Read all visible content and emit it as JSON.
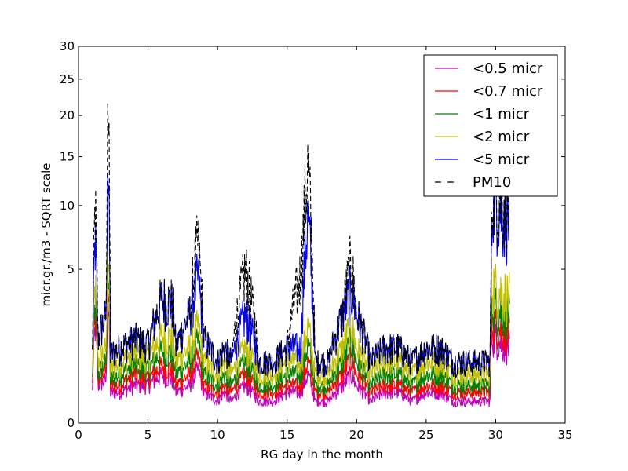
{
  "chart_data": {
    "type": "line",
    "title": "",
    "xlabel": "RG day in the month",
    "ylabel": "micr.gr./m3 - SQRT scale",
    "y_scale": "sqrt",
    "xlim": [
      0,
      35
    ],
    "ylim": [
      0,
      30
    ],
    "x_ticks": [
      0,
      5,
      10,
      15,
      20,
      25,
      30,
      35
    ],
    "y_ticks": [
      0,
      5,
      10,
      15,
      20,
      25,
      30
    ],
    "grid": false,
    "legend_position": "top-right",
    "series": [
      {
        "name": "<0.5 micr",
        "color": "#bf00bf",
        "dash": "solid",
        "points": [
          [
            1.0,
            0.2
          ],
          [
            1.2,
            2.0
          ],
          [
            1.4,
            0.3
          ],
          [
            2.0,
            0.4
          ],
          [
            2.1,
            3.5
          ],
          [
            2.3,
            0.2
          ],
          [
            3,
            0.2
          ],
          [
            4,
            0.3
          ],
          [
            5,
            0.3
          ],
          [
            6,
            0.5
          ],
          [
            6.8,
            0.4
          ],
          [
            7,
            0.2
          ],
          [
            8,
            0.3
          ],
          [
            8.6,
            0.6
          ],
          [
            9,
            0.2
          ],
          [
            10,
            0.1
          ],
          [
            10.5,
            0.2
          ],
          [
            11,
            0.1
          ],
          [
            12,
            0.3
          ],
          [
            13,
            0.1
          ],
          [
            14,
            0.1
          ],
          [
            15,
            0.2
          ],
          [
            16,
            0.2
          ],
          [
            16.5,
            0.5
          ],
          [
            17,
            0.1
          ],
          [
            18,
            0.1
          ],
          [
            19,
            0.3
          ],
          [
            19.6,
            0.5
          ],
          [
            20,
            0.3
          ],
          [
            21,
            0.1
          ],
          [
            22,
            0.2
          ],
          [
            23,
            0.2
          ],
          [
            24,
            0.1
          ],
          [
            25,
            0.2
          ],
          [
            26,
            0.2
          ],
          [
            27,
            0.1
          ],
          [
            28,
            0.1
          ],
          [
            29,
            0.1
          ],
          [
            29.6,
            0.1
          ],
          [
            29.7,
            1.6
          ],
          [
            30,
            1.5
          ],
          [
            30.5,
            1.3
          ],
          [
            31,
            1.2
          ]
        ]
      },
      {
        "name": "<0.7 micr",
        "color": "#ff0000",
        "dash": "solid",
        "points": [
          [
            1.0,
            0.3
          ],
          [
            1.2,
            2.5
          ],
          [
            1.4,
            0.4
          ],
          [
            2.0,
            0.6
          ],
          [
            2.1,
            4.5
          ],
          [
            2.3,
            0.3
          ],
          [
            3,
            0.3
          ],
          [
            4,
            0.5
          ],
          [
            5,
            0.4
          ],
          [
            6,
            0.7
          ],
          [
            6.8,
            0.6
          ],
          [
            7,
            0.3
          ],
          [
            8,
            0.5
          ],
          [
            8.6,
            0.9
          ],
          [
            9,
            0.3
          ],
          [
            10,
            0.2
          ],
          [
            10.5,
            0.3
          ],
          [
            11,
            0.2
          ],
          [
            12,
            0.5
          ],
          [
            13,
            0.2
          ],
          [
            14,
            0.2
          ],
          [
            15,
            0.3
          ],
          [
            16,
            0.3
          ],
          [
            16.5,
            0.8
          ],
          [
            17,
            0.2
          ],
          [
            18,
            0.2
          ],
          [
            19,
            0.5
          ],
          [
            19.6,
            0.9
          ],
          [
            20,
            0.5
          ],
          [
            21,
            0.2
          ],
          [
            22,
            0.3
          ],
          [
            23,
            0.3
          ],
          [
            24,
            0.2
          ],
          [
            25,
            0.3
          ],
          [
            26,
            0.3
          ],
          [
            27,
            0.2
          ],
          [
            28,
            0.2
          ],
          [
            29,
            0.2
          ],
          [
            29.6,
            0.2
          ],
          [
            29.7,
            2.2
          ],
          [
            30,
            2.0
          ],
          [
            30.5,
            1.8
          ],
          [
            31,
            1.7
          ]
        ]
      },
      {
        "name": "<1 micr",
        "color": "#008000",
        "dash": "solid",
        "points": [
          [
            1.0,
            0.4
          ],
          [
            1.2,
            3.0
          ],
          [
            1.4,
            0.5
          ],
          [
            2.0,
            0.8
          ],
          [
            2.1,
            5.5
          ],
          [
            2.3,
            0.4
          ],
          [
            3,
            0.5
          ],
          [
            4,
            0.7
          ],
          [
            5,
            0.6
          ],
          [
            6,
            1.1
          ],
          [
            6.8,
            1.0
          ],
          [
            7,
            0.5
          ],
          [
            8,
            0.8
          ],
          [
            8.6,
            1.4
          ],
          [
            9,
            0.5
          ],
          [
            10,
            0.3
          ],
          [
            10.5,
            0.5
          ],
          [
            11,
            0.3
          ],
          [
            12,
            0.8
          ],
          [
            13,
            0.3
          ],
          [
            14,
            0.3
          ],
          [
            15,
            0.5
          ],
          [
            16,
            0.5
          ],
          [
            16.5,
            1.3
          ],
          [
            17,
            0.3
          ],
          [
            18,
            0.3
          ],
          [
            19,
            0.8
          ],
          [
            19.6,
            1.4
          ],
          [
            20,
            0.8
          ],
          [
            21,
            0.3
          ],
          [
            22,
            0.5
          ],
          [
            23,
            0.5
          ],
          [
            24,
            0.3
          ],
          [
            25,
            0.5
          ],
          [
            26,
            0.5
          ],
          [
            27,
            0.3
          ],
          [
            28,
            0.3
          ],
          [
            29,
            0.3
          ],
          [
            29.6,
            0.3
          ],
          [
            29.7,
            3.1
          ],
          [
            30,
            2.8
          ],
          [
            30.5,
            2.6
          ],
          [
            31,
            2.4
          ]
        ]
      },
      {
        "name": "<2 micr",
        "color": "#bfbf00",
        "dash": "solid",
        "points": [
          [
            1.0,
            0.6
          ],
          [
            1.2,
            4.0
          ],
          [
            1.4,
            0.8
          ],
          [
            2.0,
            1.2
          ],
          [
            2.1,
            7.0
          ],
          [
            2.3,
            0.6
          ],
          [
            3,
            0.8
          ],
          [
            4,
            1.0
          ],
          [
            5,
            0.9
          ],
          [
            6,
            1.6
          ],
          [
            6.8,
            1.5
          ],
          [
            7,
            0.8
          ],
          [
            8,
            1.2
          ],
          [
            8.6,
            2.0
          ],
          [
            9,
            0.8
          ],
          [
            10,
            0.5
          ],
          [
            10.5,
            0.8
          ],
          [
            11,
            0.5
          ],
          [
            12,
            1.2
          ],
          [
            13,
            0.5
          ],
          [
            14,
            0.5
          ],
          [
            15,
            0.8
          ],
          [
            16,
            0.8
          ],
          [
            16.5,
            2.0
          ],
          [
            17,
            0.5
          ],
          [
            18,
            0.5
          ],
          [
            19,
            1.2
          ],
          [
            19.6,
            2.1
          ],
          [
            20,
            1.2
          ],
          [
            21,
            0.5
          ],
          [
            22,
            0.8
          ],
          [
            23,
            0.8
          ],
          [
            24,
            0.5
          ],
          [
            25,
            0.8
          ],
          [
            26,
            0.8
          ],
          [
            27,
            0.5
          ],
          [
            28,
            0.5
          ],
          [
            29,
            0.5
          ],
          [
            29.6,
            0.5
          ],
          [
            29.7,
            4.2
          ],
          [
            30,
            3.9
          ],
          [
            30.5,
            3.6
          ],
          [
            31,
            3.3
          ]
        ]
      },
      {
        "name": "<5 micr",
        "color": "#0000ff",
        "dash": "solid",
        "points": [
          [
            1.0,
            1.0
          ],
          [
            1.2,
            7.0
          ],
          [
            1.4,
            1.5
          ],
          [
            2.0,
            2.5
          ],
          [
            2.1,
            16.0
          ],
          [
            2.3,
            1.0
          ],
          [
            3,
            1.2
          ],
          [
            4,
            1.5
          ],
          [
            5,
            1.3
          ],
          [
            6,
            3.2
          ],
          [
            6.8,
            3.0
          ],
          [
            7,
            1.2
          ],
          [
            8,
            2.5
          ],
          [
            8.6,
            4.5
          ],
          [
            9,
            1.5
          ],
          [
            10,
            0.8
          ],
          [
            10.5,
            1.2
          ],
          [
            11,
            0.8
          ],
          [
            12,
            2.5
          ],
          [
            13,
            0.8
          ],
          [
            14,
            0.8
          ],
          [
            15,
            1.2
          ],
          [
            16,
            1.2
          ],
          [
            16.5,
            9.0
          ],
          [
            17,
            0.8
          ],
          [
            18,
            0.8
          ],
          [
            19,
            2.5
          ],
          [
            19.6,
            3.8
          ],
          [
            20,
            2.5
          ],
          [
            21,
            0.8
          ],
          [
            22,
            1.2
          ],
          [
            23,
            1.2
          ],
          [
            24,
            0.8
          ],
          [
            25,
            1.2
          ],
          [
            26,
            1.2
          ],
          [
            27,
            0.8
          ],
          [
            28,
            0.8
          ],
          [
            29,
            0.8
          ],
          [
            29.6,
            0.8
          ],
          [
            29.8,
            12.0
          ],
          [
            30,
            10.5
          ],
          [
            30.5,
            9.5
          ],
          [
            31,
            9.0
          ]
        ]
      },
      {
        "name": "PM10",
        "color": "#000000",
        "dash": "dashed",
        "points": [
          [
            1.0,
            1.0
          ],
          [
            1.2,
            10.0
          ],
          [
            1.4,
            1.5
          ],
          [
            2.0,
            2.5
          ],
          [
            2.1,
            26.0
          ],
          [
            2.3,
            1.0
          ],
          [
            3,
            1.2
          ],
          [
            4,
            1.5
          ],
          [
            5,
            1.3
          ],
          [
            6,
            3.3
          ],
          [
            6.8,
            3.1
          ],
          [
            7,
            1.2
          ],
          [
            8,
            2.5
          ],
          [
            8.6,
            7.0
          ],
          [
            9,
            1.5
          ],
          [
            10,
            0.8
          ],
          [
            10.5,
            1.2
          ],
          [
            11,
            0.8
          ],
          [
            12,
            5.0
          ],
          [
            13,
            0.8
          ],
          [
            14,
            0.8
          ],
          [
            15,
            1.2
          ],
          [
            16,
            4.8
          ],
          [
            16.5,
            14.0
          ],
          [
            17,
            0.8
          ],
          [
            18,
            0.8
          ],
          [
            19,
            2.5
          ],
          [
            19.6,
            5.5
          ],
          [
            20,
            2.5
          ],
          [
            21,
            0.8
          ],
          [
            22,
            1.2
          ],
          [
            23,
            1.2
          ],
          [
            24,
            0.8
          ],
          [
            25,
            1.2
          ],
          [
            26,
            1.2
          ],
          [
            27,
            0.8
          ],
          [
            28,
            0.8
          ],
          [
            29,
            0.8
          ],
          [
            29.6,
            0.8
          ],
          [
            29.8,
            13.0
          ],
          [
            30,
            11.5
          ],
          [
            30.5,
            10.5
          ],
          [
            31,
            10.0
          ]
        ]
      }
    ]
  }
}
